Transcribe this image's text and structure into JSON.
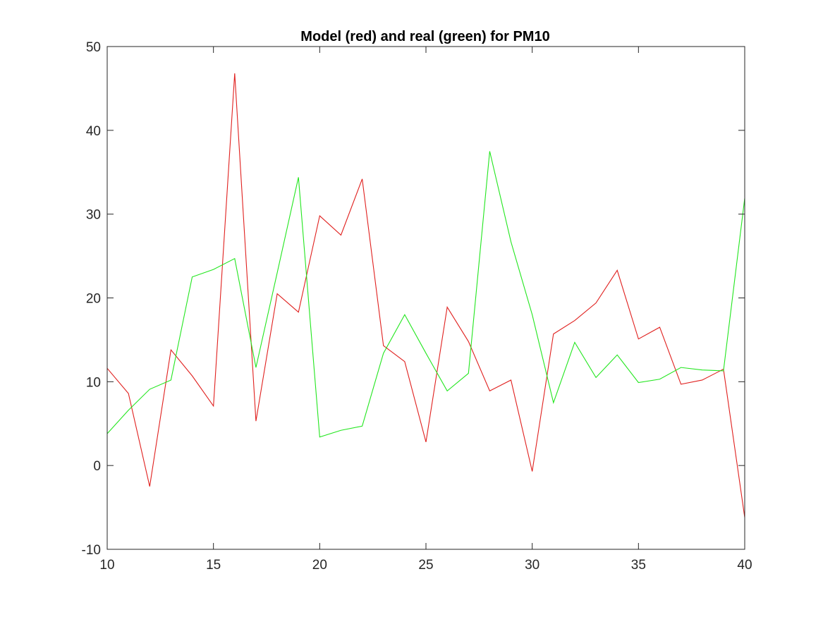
{
  "chart_data": {
    "type": "line",
    "title": "Model (red) and real (green) for PM10",
    "xlabel": "",
    "ylabel": "",
    "xlim": [
      10,
      40
    ],
    "ylim": [
      -10,
      50
    ],
    "xticks": [
      "10",
      "15",
      "20",
      "25",
      "30",
      "35",
      "40"
    ],
    "yticks": [
      "-10",
      "0",
      "10",
      "20",
      "30",
      "40",
      "50"
    ],
    "grid": false,
    "legend": "none",
    "x": [
      10,
      11,
      12,
      13,
      14,
      15,
      16,
      17,
      18,
      19,
      20,
      21,
      22,
      23,
      24,
      25,
      26,
      27,
      28,
      29,
      30,
      31,
      32,
      33,
      34,
      35,
      36,
      37,
      38,
      39,
      40
    ],
    "series": [
      {
        "color": "#e0201e",
        "values": [
          11.6,
          8.6,
          -2.5,
          13.8,
          10.7,
          7.1,
          46.8,
          5.3,
          20.5,
          18.3,
          29.8,
          27.5,
          34.2,
          14.3,
          12.4,
          2.8,
          18.9,
          14.8,
          8.9,
          10.2,
          -0.7,
          15.7,
          17.3,
          19.4,
          23.3,
          15.1,
          16.5,
          9.7,
          10.2,
          11.5,
          -6.2
        ]
      },
      {
        "color": "#22e61e",
        "values": [
          3.8,
          6.6,
          9.1,
          10.2,
          22.5,
          23.4,
          24.7,
          11.7,
          23.0,
          34.4,
          3.4,
          4.2,
          4.7,
          13.4,
          18.0,
          13.4,
          8.9,
          11.0,
          37.5,
          26.7,
          18.0,
          7.5,
          14.7,
          10.5,
          13.2,
          9.9,
          10.3,
          11.7,
          11.4,
          11.3,
          31.9
        ]
      }
    ]
  }
}
